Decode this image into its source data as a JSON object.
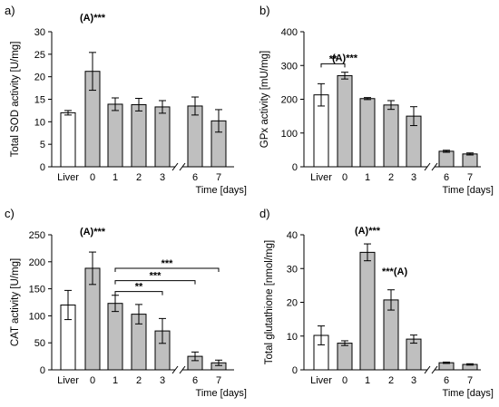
{
  "chart_data": [
    {
      "type": "bar",
      "panel_label": "a)",
      "ylabel": "Total SOD activity [U/mg]",
      "xlabel": "Time [days]",
      "ylim": [
        0,
        30
      ],
      "yticks": [
        0,
        5,
        10,
        15,
        20,
        25,
        30
      ],
      "categories": [
        "Liver",
        "0",
        "1",
        "2",
        "3",
        "6",
        "7"
      ],
      "values": [
        12,
        21.2,
        13.9,
        13.8,
        13.3,
        13.5,
        10.2
      ],
      "errors": [
        0.5,
        4.2,
        1.4,
        1.4,
        1.4,
        2.0,
        2.5
      ],
      "bar_colors": [
        "#ffffff",
        "#bfbfbf",
        "#bfbfbf",
        "#bfbfbf",
        "#bfbfbf",
        "#bfbfbf",
        "#bfbfbf"
      ],
      "annotations": [
        {
          "text": "(A)***",
          "bar": 1,
          "offset": 7
        }
      ],
      "brackets": []
    },
    {
      "type": "bar",
      "panel_label": "b)",
      "ylabel": "GPx activity [mU/mg]",
      "xlabel": "Time [days]",
      "ylim": [
        0,
        400
      ],
      "yticks": [
        0,
        100,
        200,
        300,
        400
      ],
      "categories": [
        "Liver",
        "0",
        "1",
        "2",
        "3",
        "6",
        "7"
      ],
      "values": [
        213,
        270,
        202,
        183,
        150,
        46,
        38
      ],
      "errors": [
        33,
        10,
        3,
        13,
        28,
        3,
        3
      ],
      "bar_colors": [
        "#ffffff",
        "#bfbfbf",
        "#bfbfbf",
        "#bfbfbf",
        "#bfbfbf",
        "#bfbfbf",
        "#bfbfbf"
      ],
      "annotations": [
        {
          "text": "(A)***",
          "bar": 1,
          "offset": 33
        }
      ],
      "brackets": [
        {
          "from": 0,
          "to": 1,
          "y": 305,
          "text": "**"
        }
      ]
    },
    {
      "type": "bar",
      "panel_label": "c)",
      "ylabel": "CAT activity [U/mg]",
      "xlabel": "Time [days]",
      "ylim": [
        0,
        250
      ],
      "yticks": [
        0,
        50,
        100,
        150,
        200,
        250
      ],
      "categories": [
        "Liver",
        "0",
        "1",
        "2",
        "3",
        "6",
        "7"
      ],
      "values": [
        120,
        188,
        123,
        103,
        72,
        25,
        13
      ],
      "errors": [
        27,
        30,
        15,
        18,
        23,
        8,
        5
      ],
      "bar_colors": [
        "#ffffff",
        "#bfbfbf",
        "#bfbfbf",
        "#bfbfbf",
        "#bfbfbf",
        "#bfbfbf",
        "#bfbfbf"
      ],
      "annotations": [
        {
          "text": "(A)***",
          "bar": 1,
          "offset": 32
        }
      ],
      "brackets": [
        {
          "from": 2,
          "to": 6,
          "y": 188,
          "text": "***"
        },
        {
          "from": 2,
          "to": 5,
          "y": 165,
          "text": "***"
        },
        {
          "from": 2,
          "to": 4,
          "y": 145,
          "text": "**"
        }
      ]
    },
    {
      "type": "bar",
      "panel_label": "d)",
      "ylabel": "Total glutathione [nmol/mg]",
      "xlabel": "Time [days]",
      "ylim": [
        0,
        40
      ],
      "yticks": [
        0,
        10,
        20,
        30,
        40
      ],
      "categories": [
        "Liver",
        "0",
        "1",
        "2",
        "3",
        "6",
        "7"
      ],
      "values": [
        10.2,
        7.9,
        34.8,
        20.7,
        9.1,
        2.1,
        1.6
      ],
      "errors": [
        2.8,
        0.7,
        2.5,
        3.0,
        1.2,
        0.2,
        0.2
      ],
      "bar_colors": [
        "#ffffff",
        "#bfbfbf",
        "#bfbfbf",
        "#bfbfbf",
        "#bfbfbf",
        "#bfbfbf",
        "#bfbfbf"
      ],
      "annotations": [
        {
          "text": "(A)***",
          "bar": 2,
          "offset": 3
        },
        {
          "text": "***(A)",
          "bar": 3,
          "offset": 4.5
        }
      ],
      "brackets": []
    }
  ]
}
